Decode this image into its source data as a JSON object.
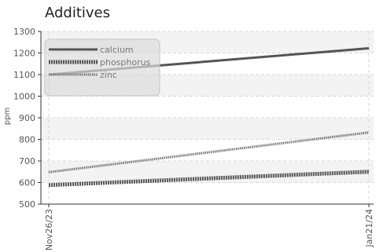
{
  "chart_data": {
    "type": "line",
    "title": "Additives",
    "xlabel": "",
    "ylabel": "ppm",
    "x": [
      "Nov26/23",
      "Jan21/24"
    ],
    "ylim": [
      500,
      1300
    ],
    "yticks": [
      500,
      600,
      700,
      800,
      900,
      1000,
      1100,
      1200,
      1300
    ],
    "grid": true,
    "legend": "top-left",
    "series": [
      {
        "name": "calcium",
        "values": [
          1100,
          1222
        ],
        "color": "#555555",
        "style": "solid"
      },
      {
        "name": "phosphorus",
        "values": [
          588,
          650
        ],
        "color": "#555555",
        "style": "dotted-thick"
      },
      {
        "name": "zinc",
        "values": [
          648,
          832
        ],
        "color": "#777777",
        "style": "dotted-thin"
      }
    ]
  }
}
